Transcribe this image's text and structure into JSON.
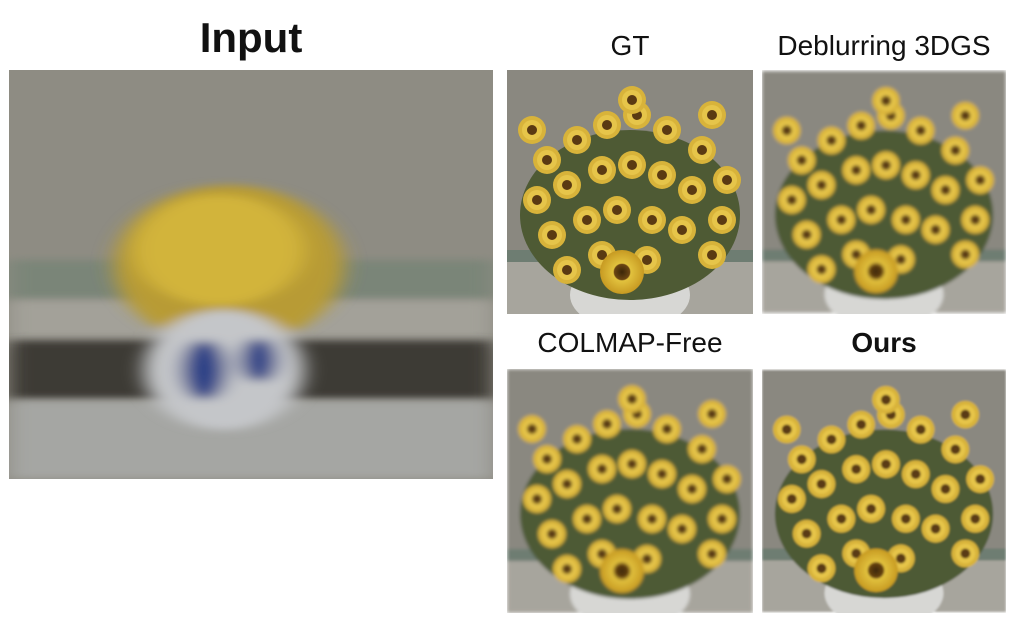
{
  "figure": {
    "input": {
      "title": "Input"
    },
    "gt": {
      "title": "GT"
    },
    "deblur": {
      "title": "Deblurring 3DGS"
    },
    "colmap": {
      "title": "COLMAP-Free"
    },
    "ours": {
      "title": "Ours"
    }
  },
  "colors": {
    "wall": "#8f8d84",
    "petal": "#d9b93a",
    "center": "#5a3a12",
    "leaf": "#4d5a35",
    "vase_blue": "#2a3f86"
  }
}
